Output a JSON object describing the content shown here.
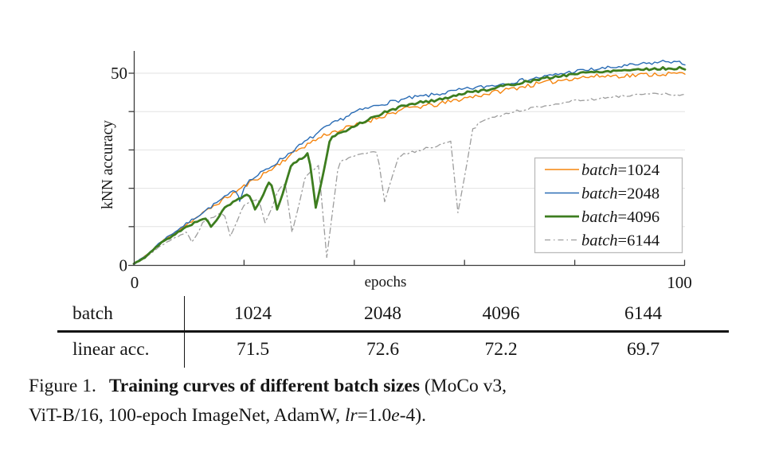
{
  "chart_data": {
    "type": "line",
    "title": "",
    "xlabel": "epochs",
    "ylabel": "kNN accuracy",
    "xlim": [
      0,
      100
    ],
    "ylim": [
      0,
      54.5
    ],
    "x_tick_labels": [
      "0",
      "100"
    ],
    "y_tick_labels": [
      "0",
      "50"
    ],
    "grid_values": [
      10,
      20,
      30,
      40,
      50
    ],
    "grid": "horizontal-only",
    "legend_position": "lower right",
    "series": [
      {
        "label": "batch=1024",
        "label_word": "batch",
        "label_rest": "=1024",
        "color": "#f5850e",
        "width": 1.4,
        "dash": "",
        "noise": 0.6,
        "seed": 11,
        "anchors": [
          [
            0,
            0.3
          ],
          [
            2,
            2.2
          ],
          [
            5,
            6.0
          ],
          [
            10,
            11.0
          ],
          [
            15,
            15.9
          ],
          [
            20,
            20.5
          ],
          [
            25,
            25.0
          ],
          [
            30,
            30.3
          ],
          [
            35,
            34.2
          ],
          [
            40,
            36.3
          ],
          [
            45,
            38.8
          ],
          [
            50,
            41.0
          ],
          [
            55,
            41.8
          ],
          [
            60,
            43.5
          ],
          [
            65,
            44.9
          ],
          [
            70,
            46.4
          ],
          [
            75,
            47.6
          ],
          [
            80,
            48.8
          ],
          [
            85,
            49.3
          ],
          [
            90,
            49.4
          ],
          [
            95,
            49.8
          ],
          [
            100,
            49.9
          ]
        ],
        "dips": [],
        "final_knn_accuracy": 49.9,
        "linear_accuracy": 71.5
      },
      {
        "label": "batch=2048",
        "label_word": "batch",
        "label_rest": "=2048",
        "color": "#2a6cb5",
        "width": 1.4,
        "dash": "",
        "noise": 0.5,
        "seed": 7,
        "anchors": [
          [
            0,
            0.3
          ],
          [
            2,
            2.2
          ],
          [
            5,
            6.2
          ],
          [
            10,
            11.2
          ],
          [
            15,
            16.2
          ],
          [
            20,
            21.0
          ],
          [
            25,
            25.8
          ],
          [
            30,
            31.0
          ],
          [
            35,
            36.0
          ],
          [
            40,
            39.8
          ],
          [
            45,
            42.0
          ],
          [
            50,
            43.5
          ],
          [
            55,
            44.5
          ],
          [
            60,
            45.8
          ],
          [
            65,
            46.8
          ],
          [
            70,
            48.0
          ],
          [
            75,
            49.2
          ],
          [
            80,
            50.5
          ],
          [
            85,
            51.2
          ],
          [
            90,
            52.0
          ],
          [
            95,
            52.8
          ],
          [
            97,
            53.2
          ],
          [
            100,
            52.4
          ]
        ],
        "dips": [
          [
            19.2,
            16.6,
            0.5,
            1.0
          ]
        ],
        "final_knn_accuracy": 52.4,
        "linear_accuracy": 72.6
      },
      {
        "label": "batch=4096",
        "label_word": "batch",
        "label_rest": "=4096",
        "color": "#3d7d1f",
        "width": 2.8,
        "dash": "",
        "noise": 0.35,
        "seed": 5,
        "anchors": [
          [
            0,
            0.3
          ],
          [
            2,
            2.0
          ],
          [
            5,
            5.8
          ],
          [
            10,
            10.3
          ],
          [
            15,
            14.0
          ],
          [
            20,
            17.8
          ],
          [
            25,
            22.0
          ],
          [
            30,
            27.5
          ],
          [
            35,
            32.4
          ],
          [
            40,
            36.3
          ],
          [
            45,
            39.5
          ],
          [
            50,
            42.0
          ],
          [
            55,
            43.0
          ],
          [
            60,
            44.8
          ],
          [
            65,
            46.0
          ],
          [
            70,
            47.5
          ],
          [
            75,
            48.7
          ],
          [
            80,
            49.9
          ],
          [
            85,
            50.5
          ],
          [
            90,
            50.9
          ],
          [
            95,
            51.2
          ],
          [
            100,
            51.3
          ]
        ],
        "dips": [
          [
            14,
            10,
            1.2,
            2.4
          ],
          [
            22,
            14.5,
            1.2,
            2.4
          ],
          [
            26,
            14.5,
            1.2,
            2.4
          ],
          [
            33,
            15,
            1.3,
            2.6
          ]
        ],
        "final_knn_accuracy": 51.3,
        "linear_accuracy": 72.2
      },
      {
        "label": "batch=6144",
        "label_word": "batch",
        "label_rest": "=6144",
        "color": "#9d9d9d",
        "width": 1.3,
        "dash": "7 4 1.5 4",
        "noise": 0.3,
        "seed": 3,
        "anchors": [
          [
            0,
            0.3
          ],
          [
            2,
            1.8
          ],
          [
            5,
            5.2
          ],
          [
            10,
            8.9
          ],
          [
            15,
            13.0
          ],
          [
            20,
            15.8
          ],
          [
            25,
            18.5
          ],
          [
            27,
            20.5
          ],
          [
            31,
            23.0
          ],
          [
            34,
            26.5
          ],
          [
            37,
            27.0
          ],
          [
            40,
            28.3
          ],
          [
            44,
            29.5
          ],
          [
            48,
            28.5
          ],
          [
            52,
            30.0
          ],
          [
            56,
            31.5
          ],
          [
            58.5,
            32.5
          ],
          [
            61,
            34.5
          ],
          [
            63,
            37.5
          ],
          [
            65,
            38.5
          ],
          [
            70,
            40.3
          ],
          [
            75,
            41.7
          ],
          [
            80,
            42.8
          ],
          [
            85,
            43.5
          ],
          [
            90,
            44.3
          ],
          [
            95,
            44.6
          ],
          [
            100,
            44.3
          ]
        ],
        "dips": [
          [
            10.5,
            6,
            1.0,
            2.0
          ],
          [
            17.5,
            7.5,
            1.2,
            2.4
          ],
          [
            23.8,
            11,
            1.2,
            2.4
          ],
          [
            28.7,
            8.5,
            1.2,
            2.4
          ],
          [
            35,
            2,
            1.5,
            2.2
          ],
          [
            45.5,
            16.5,
            1.3,
            2.6
          ],
          [
            58.8,
            13.7,
            1.3,
            2.6
          ]
        ],
        "final_knn_accuracy": 44.3,
        "linear_accuracy": 69.7
      }
    ]
  },
  "table": {
    "header_label": "batch",
    "row_label": "linear acc.",
    "columns": [
      "1024",
      "2048",
      "4096",
      "6144"
    ],
    "values": [
      "71.5",
      "72.6",
      "72.2",
      "69.7"
    ]
  },
  "caption": {
    "fig_label": "Figure 1.",
    "bold": "Training curves of different batch sizes",
    "line1_tail": "(MoCo v3,",
    "line2_a": "ViT-B/16, 100-epoch ImageNet, AdamW, ",
    "lr_italic": "lr",
    "line2_b": "=1.0",
    "e_italic": "e",
    "line2_c": "-4)."
  }
}
